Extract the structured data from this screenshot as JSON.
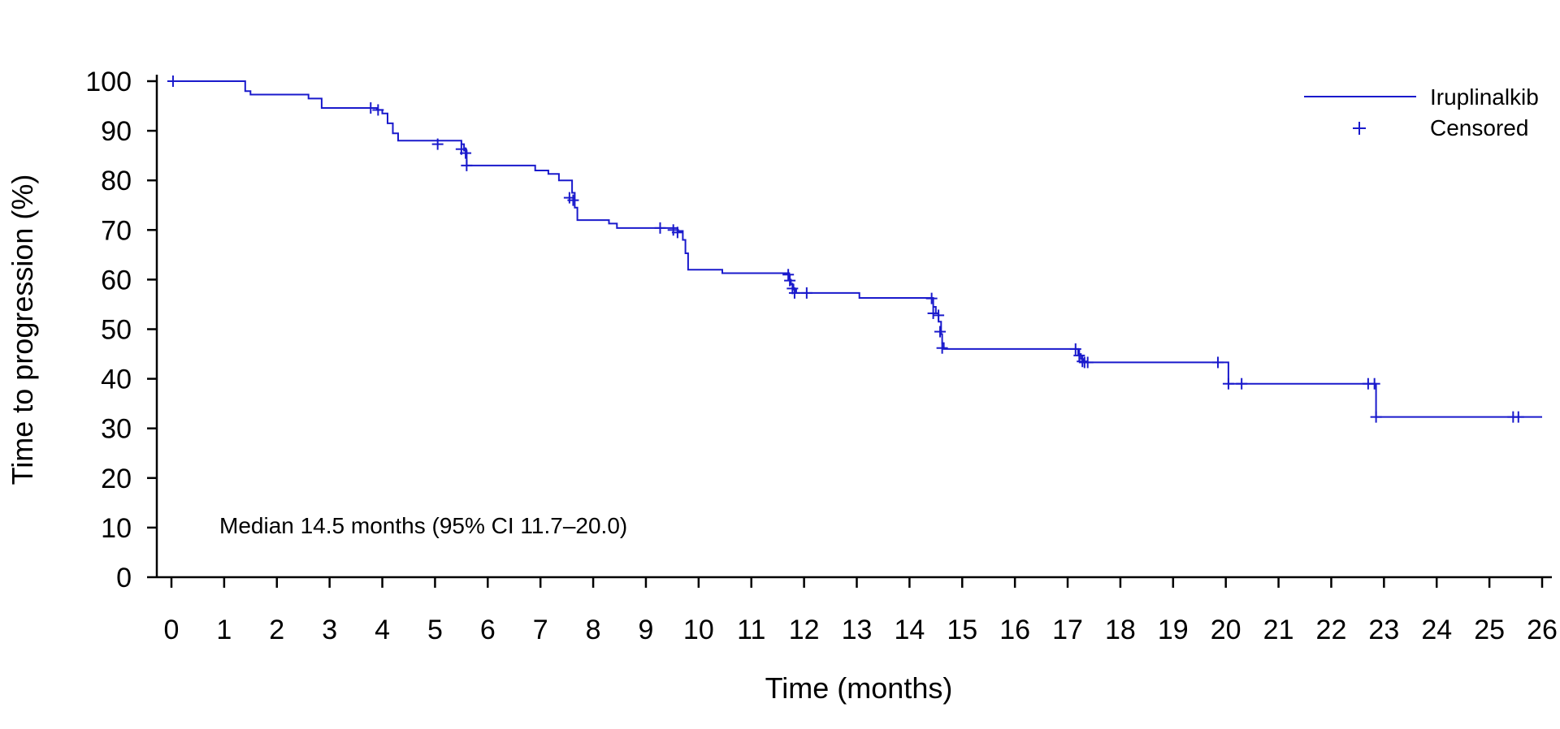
{
  "chart_data": {
    "type": "line",
    "title": "",
    "xlabel": "Time (months)",
    "ylabel": "Time to progression (%)",
    "xlim": [
      0,
      26
    ],
    "ylim": [
      0,
      100
    ],
    "x_ticks": [
      "0",
      "1",
      "2",
      "3",
      "4",
      "5",
      "6",
      "7",
      "8",
      "9",
      "10",
      "11",
      "12",
      "13",
      "14",
      "15",
      "16",
      "17",
      "18",
      "19",
      "20",
      "21",
      "22",
      "23",
      "24",
      "25",
      "26"
    ],
    "y_ticks": [
      "0",
      "10",
      "20",
      "30",
      "40",
      "50",
      "60",
      "70",
      "80",
      "90",
      "100"
    ],
    "grid": false,
    "legend_position": "top-right",
    "annotation": "Median 14.5 months (95% CI 11.7–20.0)",
    "series": [
      {
        "name": "Iruplinalkib",
        "color": "#1a1acc",
        "step_points": [
          [
            0,
            100
          ],
          [
            1.35,
            100
          ],
          [
            1.4,
            98
          ],
          [
            1.5,
            97.3
          ],
          [
            2.5,
            97.3
          ],
          [
            2.6,
            96.5
          ],
          [
            2.75,
            96.5
          ],
          [
            2.85,
            94.6
          ],
          [
            3.8,
            94.6
          ],
          [
            3.9,
            94.2
          ],
          [
            4.0,
            93.5
          ],
          [
            4.1,
            91.5
          ],
          [
            4.2,
            89.5
          ],
          [
            4.3,
            88.0
          ],
          [
            5.45,
            88.0
          ],
          [
            5.5,
            87.3
          ],
          [
            5.55,
            86.0
          ],
          [
            5.6,
            83.0
          ],
          [
            6.8,
            83.0
          ],
          [
            6.9,
            82.0
          ],
          [
            7.15,
            81.3
          ],
          [
            7.35,
            80.0
          ],
          [
            7.5,
            80.0
          ],
          [
            7.6,
            77.5
          ],
          [
            7.65,
            74.5
          ],
          [
            7.7,
            72.0
          ],
          [
            8.2,
            72.0
          ],
          [
            8.3,
            71.3
          ],
          [
            8.45,
            70.4
          ],
          [
            9.55,
            70.4
          ],
          [
            9.6,
            69.8
          ],
          [
            9.7,
            68.0
          ],
          [
            9.75,
            65.3
          ],
          [
            9.8,
            62.0
          ],
          [
            10.4,
            62.0
          ],
          [
            10.45,
            61.3
          ],
          [
            11.7,
            61.3
          ],
          [
            11.72,
            60.0
          ],
          [
            11.75,
            59.0
          ],
          [
            11.8,
            58.0
          ],
          [
            11.85,
            57.3
          ],
          [
            13.0,
            57.3
          ],
          [
            13.05,
            56.3
          ],
          [
            14.4,
            56.3
          ],
          [
            14.45,
            54.5
          ],
          [
            14.5,
            53.2
          ],
          [
            14.55,
            51.5
          ],
          [
            14.6,
            49.0
          ],
          [
            14.62,
            47.2
          ],
          [
            14.65,
            46.0
          ],
          [
            17.15,
            46.0
          ],
          [
            17.2,
            45.0
          ],
          [
            17.25,
            44.0
          ],
          [
            17.3,
            43.3
          ],
          [
            19.95,
            43.3
          ],
          [
            20.05,
            39.0
          ],
          [
            22.8,
            39.0
          ],
          [
            22.85,
            32.3
          ],
          [
            26.0,
            32.3
          ]
        ],
        "censored": [
          [
            0.03,
            100
          ],
          [
            3.78,
            94.6
          ],
          [
            3.92,
            94.2
          ],
          [
            5.05,
            87.3
          ],
          [
            5.5,
            86.3
          ],
          [
            5.58,
            85.5
          ],
          [
            5.6,
            83.0
          ],
          [
            7.55,
            76.5
          ],
          [
            7.62,
            76.0
          ],
          [
            9.27,
            70.4
          ],
          [
            9.52,
            70.0
          ],
          [
            9.6,
            69.5
          ],
          [
            11.7,
            61.0
          ],
          [
            11.73,
            59.8
          ],
          [
            11.78,
            58.2
          ],
          [
            11.82,
            57.3
          ],
          [
            12.05,
            57.3
          ],
          [
            14.42,
            56.2
          ],
          [
            14.45,
            53.2
          ],
          [
            14.55,
            52.8
          ],
          [
            14.58,
            49.5
          ],
          [
            14.62,
            46.2
          ],
          [
            17.15,
            46.0
          ],
          [
            17.22,
            44.7
          ],
          [
            17.28,
            43.5
          ],
          [
            17.32,
            43.3
          ],
          [
            17.38,
            43.3
          ],
          [
            19.85,
            43.3
          ],
          [
            20.05,
            39.0
          ],
          [
            20.3,
            39.0
          ],
          [
            22.7,
            39.0
          ],
          [
            22.82,
            39.0
          ],
          [
            22.85,
            32.3
          ],
          [
            25.45,
            32.3
          ],
          [
            25.55,
            32.3
          ]
        ]
      }
    ],
    "legend": {
      "line_label": "Iruplinalkib",
      "censor_label": "Censored",
      "censor_symbol": "+"
    }
  }
}
